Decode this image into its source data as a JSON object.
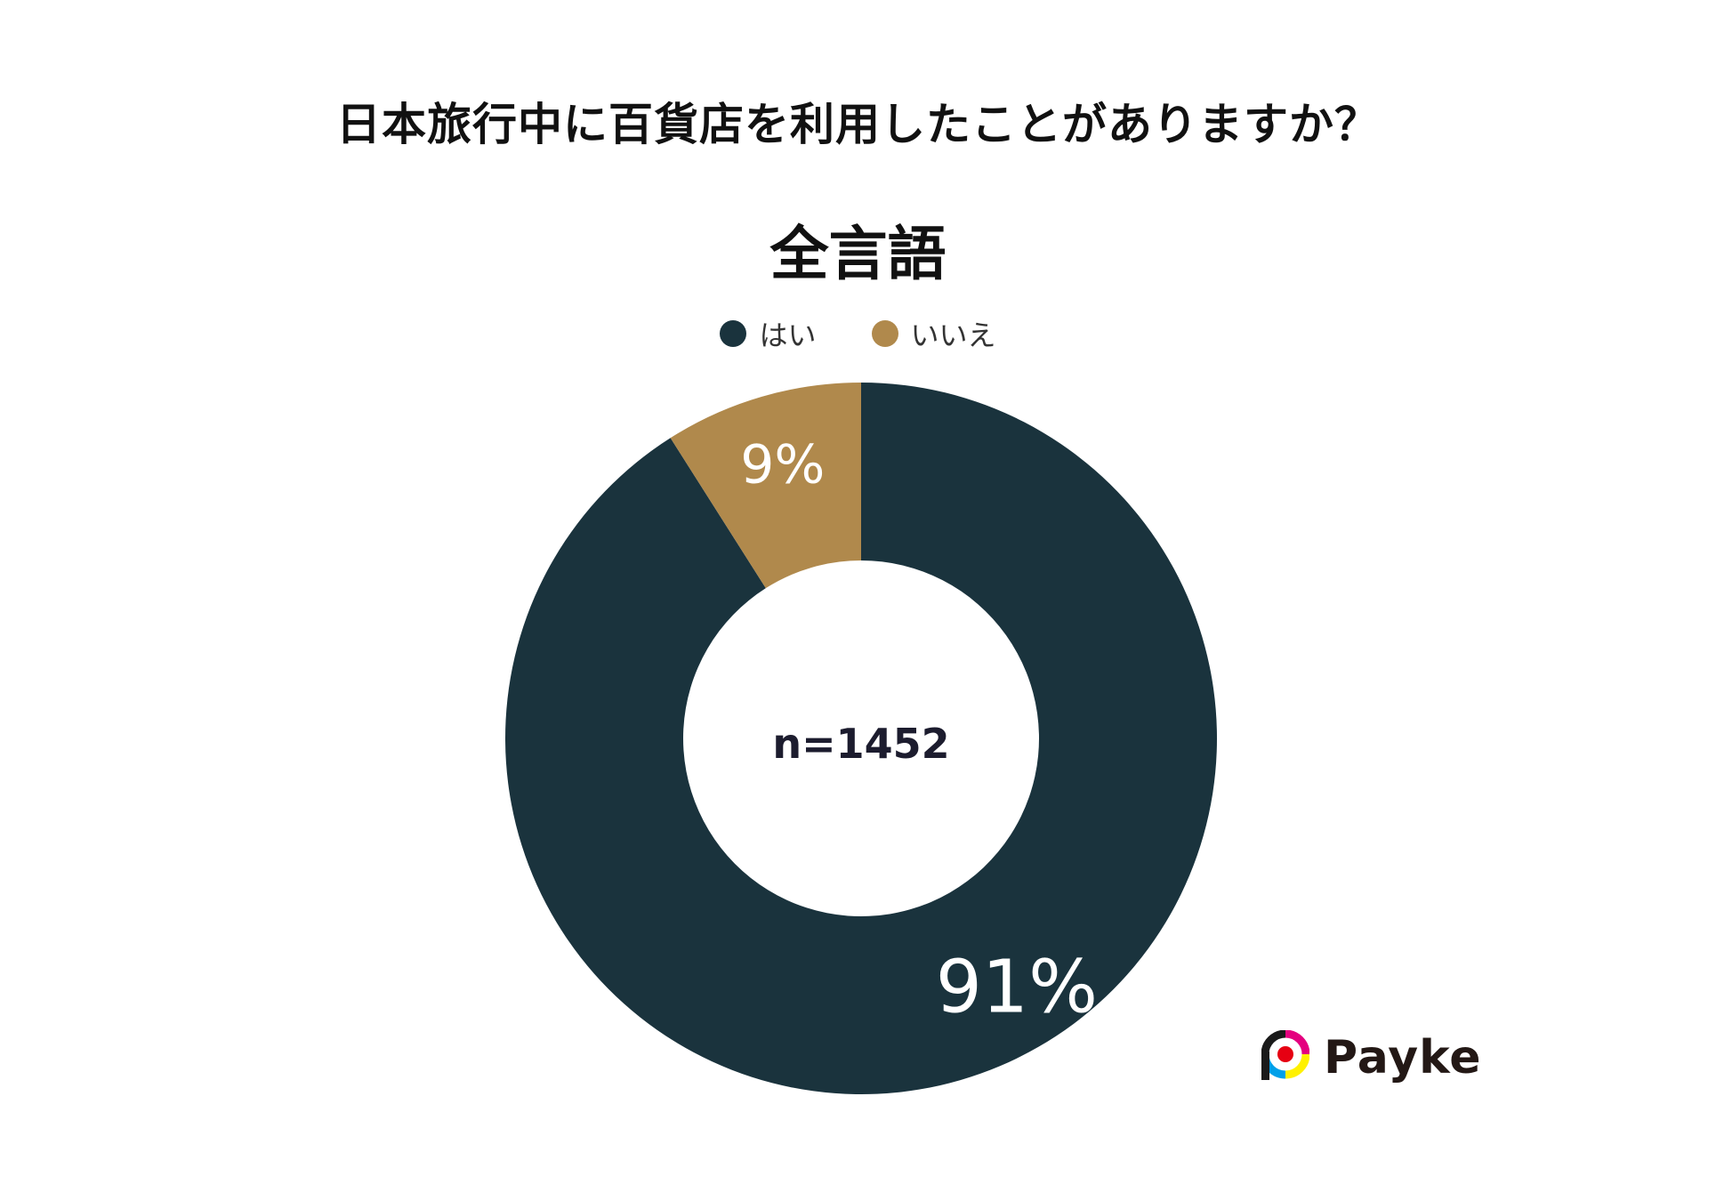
{
  "title": "日本旅行中に百貨店を利用したことがありますか？",
  "subtitle": "全言語",
  "chart_data": {
    "type": "pie",
    "donut": true,
    "categories": [
      "はい",
      "いいえ"
    ],
    "values": [
      91,
      9
    ],
    "value_labels": [
      "91%",
      "9%"
    ],
    "colors": [
      "#1a333d",
      "#b0894c"
    ],
    "center_label": "n=1452",
    "legend_position": "top"
  },
  "logo": {
    "text": "Payke"
  }
}
